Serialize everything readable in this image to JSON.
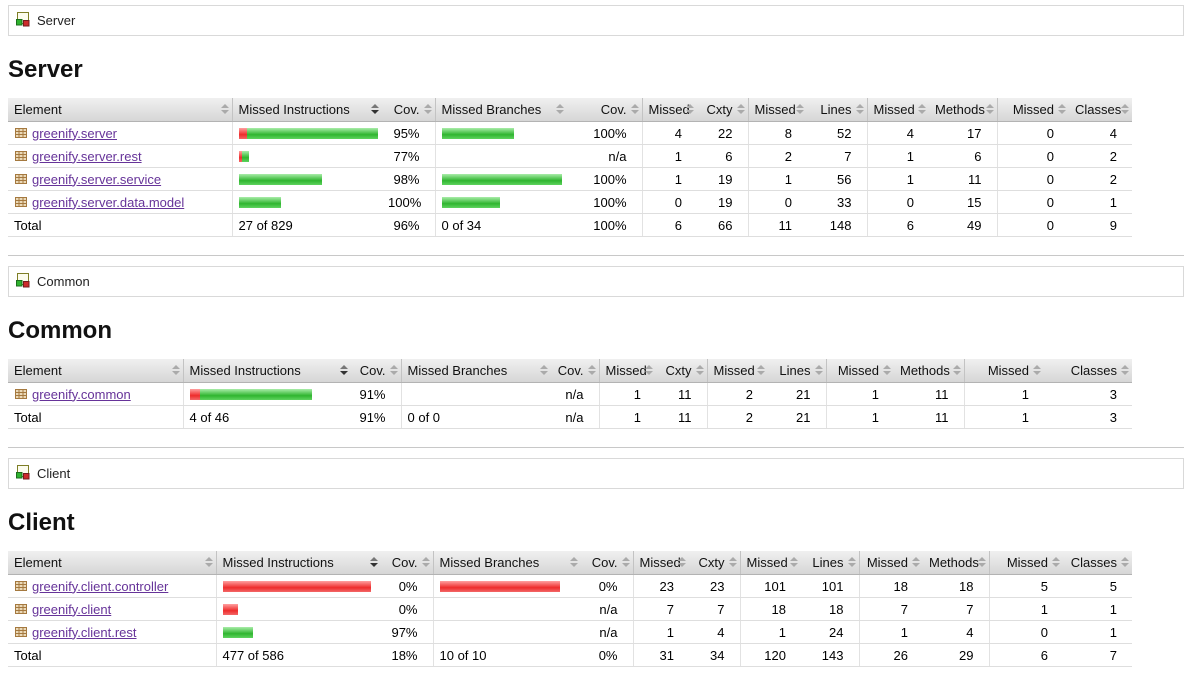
{
  "columns": {
    "element": "Element",
    "missed_instructions": "Missed Instructions",
    "cov1": "Cov.",
    "missed_branches": "Missed Branches",
    "cov2": "Cov.",
    "missed1": "Missed",
    "cxty": "Cxty",
    "missed2": "Missed",
    "lines": "Lines",
    "missed3": "Missed",
    "methods": "Methods",
    "missed4": "Missed",
    "classes": "Classes"
  },
  "colors": {
    "bar_red": "#ee2c2c",
    "bar_green": "#2fb52f",
    "link_purple": "#663399"
  },
  "sections": [
    {
      "breadcrumb": "Server",
      "title": "Server",
      "rows": [
        {
          "name": "greenify.server",
          "ins_red_w": 8,
          "ins_green_w": 131,
          "ins_cov": "95%",
          "br_red_w": 0,
          "br_green_w": 72,
          "br_cov": "100%",
          "m_cxty": "4",
          "cxty": "22",
          "m_lines": "8",
          "lines": "52",
          "m_methods": "4",
          "methods": "17",
          "m_classes": "0",
          "classes": "4"
        },
        {
          "name": "greenify.server.rest",
          "ins_red_w": 3,
          "ins_green_w": 7,
          "ins_cov": "77%",
          "br_red_w": 0,
          "br_green_w": 0,
          "br_cov": "n/a",
          "m_cxty": "1",
          "cxty": "6",
          "m_lines": "2",
          "lines": "7",
          "m_methods": "1",
          "methods": "6",
          "m_classes": "0",
          "classes": "2"
        },
        {
          "name": "greenify.server.service",
          "ins_red_w": 0,
          "ins_green_w": 83,
          "ins_cov": "98%",
          "br_red_w": 0,
          "br_green_w": 120,
          "br_cov": "100%",
          "m_cxty": "1",
          "cxty": "19",
          "m_lines": "1",
          "lines": "56",
          "m_methods": "1",
          "methods": "11",
          "m_classes": "0",
          "classes": "2"
        },
        {
          "name": "greenify.server.data.model",
          "ins_red_w": 0,
          "ins_green_w": 42,
          "ins_cov": "100%",
          "br_red_w": 0,
          "br_green_w": 58,
          "br_cov": "100%",
          "m_cxty": "0",
          "cxty": "19",
          "m_lines": "0",
          "lines": "33",
          "m_methods": "0",
          "methods": "15",
          "m_classes": "0",
          "classes": "1"
        }
      ],
      "total": {
        "label": "Total",
        "ins_text": "27 of 829",
        "ins_cov": "96%",
        "br_text": "0 of 34",
        "br_cov": "100%",
        "m_cxty": "6",
        "cxty": "66",
        "m_lines": "11",
        "lines": "148",
        "m_methods": "6",
        "methods": "49",
        "m_classes": "0",
        "classes": "9"
      }
    },
    {
      "breadcrumb": "Common",
      "title": "Common",
      "rows": [
        {
          "name": "greenify.common",
          "ins_red_w": 10,
          "ins_green_w": 112,
          "ins_cov": "91%",
          "br_red_w": 0,
          "br_green_w": 0,
          "br_cov": "n/a",
          "m_cxty": "1",
          "cxty": "11",
          "m_lines": "2",
          "lines": "21",
          "m_methods": "1",
          "methods": "11",
          "m_classes": "1",
          "classes": "3"
        }
      ],
      "total": {
        "label": "Total",
        "ins_text": "4 of 46",
        "ins_cov": "91%",
        "br_text": "0 of 0",
        "br_cov": "n/a",
        "m_cxty": "1",
        "cxty": "11",
        "m_lines": "2",
        "lines": "21",
        "m_methods": "1",
        "methods": "11",
        "m_classes": "1",
        "classes": "3"
      }
    },
    {
      "breadcrumb": "Client",
      "title": "Client",
      "rows": [
        {
          "name": "greenify.client.controller",
          "ins_red_w": 148,
          "ins_green_w": 0,
          "ins_cov": "0%",
          "br_red_w": 120,
          "br_green_w": 0,
          "br_cov": "0%",
          "m_cxty": "23",
          "cxty": "23",
          "m_lines": "101",
          "lines": "101",
          "m_methods": "18",
          "methods": "18",
          "m_classes": "5",
          "classes": "5"
        },
        {
          "name": "greenify.client",
          "ins_red_w": 15,
          "ins_green_w": 0,
          "ins_cov": "0%",
          "br_red_w": 0,
          "br_green_w": 0,
          "br_cov": "n/a",
          "m_cxty": "7",
          "cxty": "7",
          "m_lines": "18",
          "lines": "18",
          "m_methods": "7",
          "methods": "7",
          "m_classes": "1",
          "classes": "1"
        },
        {
          "name": "greenify.client.rest",
          "ins_red_w": 0,
          "ins_green_w": 30,
          "ins_cov": "97%",
          "br_red_w": 0,
          "br_green_w": 0,
          "br_cov": "n/a",
          "m_cxty": "1",
          "cxty": "4",
          "m_lines": "1",
          "lines": "24",
          "m_methods": "1",
          "methods": "4",
          "m_classes": "0",
          "classes": "1"
        }
      ],
      "total": {
        "label": "Total",
        "ins_text": "477 of 586",
        "ins_cov": "18%",
        "br_text": "10 of 10",
        "br_cov": "0%",
        "m_cxty": "31",
        "cxty": "34",
        "m_lines": "120",
        "lines": "143",
        "m_methods": "26",
        "methods": "29",
        "m_classes": "6",
        "classes": "7"
      }
    }
  ]
}
